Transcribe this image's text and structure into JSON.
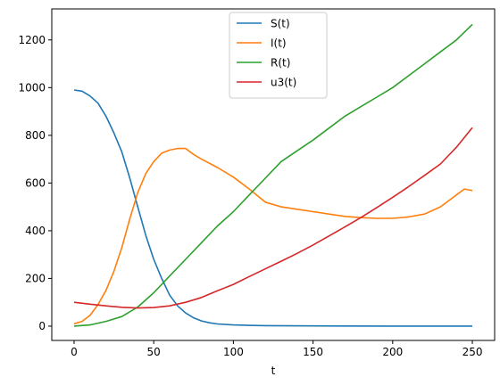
{
  "chart_data": {
    "type": "line",
    "title": "",
    "xlabel": "t",
    "ylabel": "",
    "xlim": [
      -14,
      264
    ],
    "ylim": [
      -60,
      1330
    ],
    "xticks": [
      0,
      50,
      100,
      150,
      200,
      250
    ],
    "yticks": [
      0,
      200,
      400,
      600,
      800,
      1000,
      1200
    ],
    "grid": false,
    "legend_position": "top-center",
    "series": [
      {
        "name": "S(t)",
        "color": "#1f77b4",
        "x": [
          0,
          5,
          10,
          15,
          20,
          25,
          30,
          35,
          40,
          45,
          50,
          55,
          60,
          65,
          70,
          75,
          80,
          85,
          90,
          100,
          110,
          120,
          150,
          200,
          250
        ],
        "y": [
          990,
          985,
          965,
          935,
          880,
          810,
          730,
          620,
          500,
          380,
          280,
          200,
          130,
          85,
          55,
          35,
          22,
          14,
          9,
          5,
          3,
          2,
          1,
          0,
          0
        ]
      },
      {
        "name": "I(t)",
        "color": "#ff7f0e",
        "x": [
          0,
          5,
          10,
          15,
          20,
          25,
          30,
          35,
          40,
          45,
          50,
          55,
          60,
          65,
          70,
          75,
          80,
          90,
          100,
          110,
          120,
          130,
          140,
          150,
          160,
          170,
          180,
          190,
          200,
          210,
          220,
          230,
          240,
          245,
          250
        ],
        "y": [
          10,
          20,
          45,
          90,
          150,
          230,
          330,
          450,
          560,
          640,
          690,
          725,
          738,
          745,
          745,
          720,
          700,
          665,
          625,
          575,
          520,
          500,
          490,
          480,
          470,
          460,
          455,
          452,
          452,
          458,
          470,
          500,
          550,
          575,
          568
        ]
      },
      {
        "name": "R(t)",
        "color": "#2ca02c",
        "x": [
          0,
          10,
          20,
          30,
          40,
          50,
          60,
          70,
          80,
          90,
          100,
          110,
          120,
          130,
          140,
          150,
          160,
          170,
          180,
          190,
          200,
          210,
          220,
          230,
          240,
          250
        ],
        "y": [
          0,
          5,
          20,
          40,
          80,
          140,
          210,
          280,
          350,
          420,
          480,
          550,
          620,
          690,
          735,
          780,
          830,
          880,
          920,
          960,
          1000,
          1050,
          1100,
          1150,
          1200,
          1265
        ]
      },
      {
        "name": "u3(t)",
        "color": "#d62728",
        "x": [
          0,
          10,
          20,
          30,
          40,
          50,
          60,
          70,
          80,
          90,
          100,
          110,
          120,
          130,
          140,
          150,
          160,
          170,
          180,
          190,
          200,
          210,
          220,
          230,
          240,
          250
        ],
        "y": [
          100,
          92,
          85,
          79,
          76,
          78,
          85,
          100,
          120,
          148,
          175,
          208,
          240,
          272,
          305,
          340,
          378,
          416,
          455,
          497,
          540,
          585,
          632,
          680,
          750,
          832
        ]
      }
    ]
  }
}
